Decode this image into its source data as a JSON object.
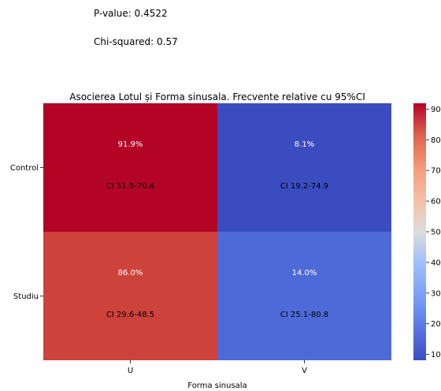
{
  "stats": {
    "p_value": "P-value: 0.4522",
    "chi_squared": "Chi-squared: 0.57"
  },
  "chart_data": {
    "type": "heatmap",
    "title": "Asocierea Lotul și Forma sinusala. Frecvente relative cu 95%CI",
    "xlabel": "Forma sinusala",
    "ylabel": "",
    "x_categories": [
      "U",
      "V"
    ],
    "y_categories": [
      "Control",
      "Studiu"
    ],
    "values": [
      [
        91.9,
        8.1
      ],
      [
        86.0,
        14.0
      ]
    ],
    "value_labels": [
      [
        "91.9%",
        "8.1%"
      ],
      [
        "86.0%",
        "14.0%"
      ]
    ],
    "ci_labels": [
      [
        "CI 51.5-70.4",
        "CI 19.2-74.9"
      ],
      [
        "CI 29.6-48.5",
        "CI 25.1-80.8"
      ]
    ],
    "colorbar": {
      "range": [
        8.1,
        91.9
      ],
      "ticks": [
        10,
        20,
        30,
        40,
        50,
        60,
        70,
        80,
        90
      ],
      "colormap": "coolwarm"
    },
    "colors": {
      "cell_control_u": "#b40426",
      "cell_control_v": "#3b4cc0",
      "cell_studiu_u": "#cd423b",
      "cell_studiu_v": "#4e6ad8"
    }
  }
}
